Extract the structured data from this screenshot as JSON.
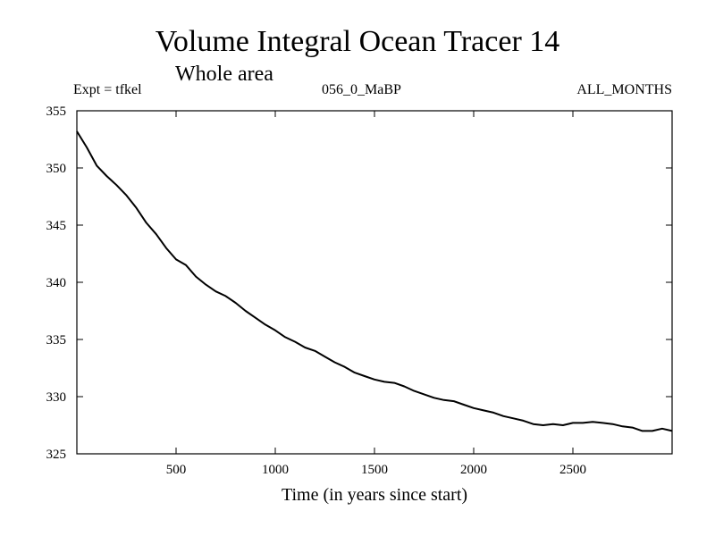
{
  "header": {
    "title": "Volume Integral Ocean Tracer 14",
    "subtitle": "Whole area",
    "expt": "Expt = tfkel",
    "run": "056_0_MaBP",
    "months": "ALL_MONTHS"
  },
  "chart_data": {
    "type": "line",
    "title": "Volume Integral Ocean Tracer 14",
    "subtitle": "Whole area",
    "xlabel": "Time (in years since start)",
    "ylabel": "",
    "xlim": [
      0,
      3000
    ],
    "ylim": [
      325,
      355
    ],
    "xticks": [
      500,
      1000,
      1500,
      2000,
      2500
    ],
    "yticks": [
      325,
      330,
      335,
      340,
      345,
      350,
      355
    ],
    "grid": false,
    "series": [
      {
        "color": "#000000",
        "x": [
          0,
          50,
          100,
          150,
          200,
          250,
          300,
          350,
          400,
          450,
          500,
          550,
          600,
          650,
          700,
          750,
          800,
          850,
          900,
          950,
          1000,
          1050,
          1100,
          1150,
          1200,
          1250,
          1300,
          1350,
          1400,
          1450,
          1500,
          1550,
          1600,
          1650,
          1700,
          1750,
          1800,
          1850,
          1900,
          1950,
          2000,
          2050,
          2100,
          2150,
          2200,
          2250,
          2300,
          2350,
          2400,
          2450,
          2500,
          2550,
          2600,
          2650,
          2700,
          2750,
          2800,
          2850,
          2900,
          2950,
          3000
        ],
        "y": [
          353.2,
          351.8,
          350.2,
          349.3,
          348.5,
          347.6,
          346.5,
          345.2,
          344.2,
          343.0,
          342.0,
          341.5,
          340.5,
          339.8,
          339.2,
          338.8,
          338.2,
          337.5,
          336.9,
          336.3,
          335.8,
          335.2,
          334.8,
          334.3,
          334.0,
          333.5,
          333.0,
          332.6,
          332.1,
          331.8,
          331.5,
          331.3,
          331.2,
          330.9,
          330.5,
          330.2,
          329.9,
          329.7,
          329.6,
          329.3,
          329.0,
          328.8,
          328.6,
          328.3,
          328.1,
          327.9,
          327.6,
          327.5,
          327.6,
          327.5,
          327.7,
          327.7,
          327.8,
          327.7,
          327.6,
          327.4,
          327.3,
          327.0,
          327.0,
          327.2,
          327.0
        ]
      }
    ]
  }
}
